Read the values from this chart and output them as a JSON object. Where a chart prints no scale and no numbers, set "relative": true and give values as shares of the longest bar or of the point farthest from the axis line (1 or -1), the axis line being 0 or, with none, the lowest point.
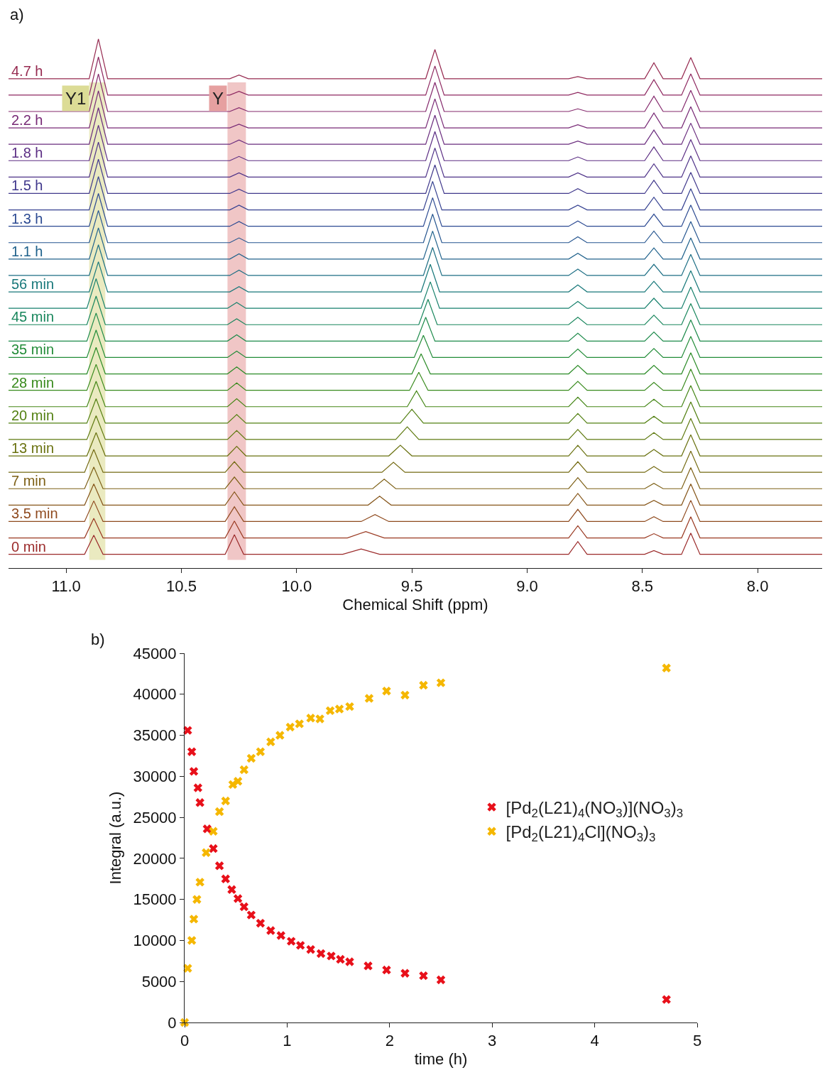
{
  "chart_data": [
    {
      "type": "line",
      "relative": true,
      "xlabel": "Chemical Shift (ppm)",
      "annotations": [
        "a)"
      ],
      "xlim": [
        11.25,
        7.72
      ],
      "xticks": [
        {
          "value": 11,
          "label": "11.0"
        },
        {
          "value": 10.5,
          "label": "10.5"
        },
        {
          "value": 10,
          "label": "10.0"
        },
        {
          "value": 9.5,
          "label": "9.5"
        },
        {
          "value": 9,
          "label": "9.0"
        },
        {
          "value": 8.5,
          "label": "8.5"
        },
        {
          "value": 8,
          "label": "8.0"
        }
      ],
      "tick_labels": "x",
      "grid": false,
      "legend": false,
      "marker": "none",
      "line_style": "solid",
      "bands": [
        {
          "axis": "x",
          "from": 10.9,
          "to": 10.83,
          "label": "Y1",
          "color": "#dcdc96"
        },
        {
          "axis": "x",
          "from": 10.3,
          "to": 10.22,
          "label": "Y",
          "color": "#e6a0a0"
        }
      ],
      "series": [
        {
          "name": "0 min",
          "color": "#9b2a2a",
          "x": [
            11.25,
            10.92,
            10.88,
            10.84,
            10.31,
            10.27,
            10.23,
            9.8,
            9.72,
            9.64,
            8.82,
            8.78,
            8.74,
            8.49,
            8.45,
            8.41,
            8.33,
            8.29,
            8.25,
            7.72
          ],
          "values": [
            0.026,
            0.026,
            0.062,
            0.026,
            0.026,
            0.063,
            0.026,
            0.026,
            0.036,
            0.026,
            0.026,
            0.05,
            0.026,
            0.026,
            0.033,
            0.026,
            0.026,
            0.066,
            0.026,
            0.026
          ]
        },
        {
          "color": "#9a3a22",
          "x": [
            11.25,
            10.92,
            10.88,
            10.84,
            10.31,
            10.27,
            10.23,
            9.78,
            9.7,
            9.62,
            8.82,
            8.78,
            8.74,
            8.49,
            8.45,
            8.41,
            8.33,
            8.29,
            8.25,
            7.72
          ],
          "values": [
            0.057,
            0.057,
            0.094,
            0.057,
            0.057,
            0.089,
            0.057,
            0.057,
            0.069,
            0.057,
            0.057,
            0.08,
            0.057,
            0.057,
            0.065,
            0.057,
            0.057,
            0.097,
            0.057,
            0.057
          ]
        },
        {
          "name": "3.5 min",
          "color": "#8f4a1e",
          "x": [
            11.25,
            10.92,
            10.88,
            10.84,
            10.31,
            10.27,
            10.23,
            9.72,
            9.66,
            9.6,
            8.82,
            8.78,
            8.74,
            8.49,
            8.45,
            8.41,
            8.33,
            8.29,
            8.25,
            7.72
          ],
          "values": [
            0.088,
            0.088,
            0.127,
            0.088,
            0.088,
            0.116,
            0.088,
            0.088,
            0.101,
            0.088,
            0.088,
            0.111,
            0.088,
            0.088,
            0.097,
            0.088,
            0.088,
            0.128,
            0.088,
            0.088
          ]
        },
        {
          "color": "#86561a",
          "x": [
            11.25,
            10.92,
            10.88,
            10.84,
            10.31,
            10.27,
            10.23,
            9.69,
            9.64,
            9.59,
            8.82,
            8.78,
            8.74,
            8.49,
            8.45,
            8.41,
            8.33,
            8.29,
            8.25,
            7.72
          ],
          "values": [
            0.119,
            0.119,
            0.159,
            0.119,
            0.119,
            0.144,
            0.119,
            0.119,
            0.136,
            0.119,
            0.119,
            0.141,
            0.119,
            0.119,
            0.128,
            0.119,
            0.119,
            0.159,
            0.119,
            0.119
          ]
        },
        {
          "name": "7 min",
          "color": "#7d6016",
          "x": [
            11.25,
            10.92,
            10.88,
            10.84,
            10.31,
            10.27,
            10.23,
            9.67,
            9.62,
            9.57,
            8.82,
            8.78,
            8.74,
            8.49,
            8.45,
            8.41,
            8.33,
            8.29,
            8.25,
            7.72
          ],
          "values": [
            0.15,
            0.15,
            0.191,
            0.15,
            0.15,
            0.172,
            0.15,
            0.15,
            0.168,
            0.15,
            0.15,
            0.171,
            0.15,
            0.15,
            0.16,
            0.15,
            0.15,
            0.19,
            0.15,
            0.15
          ]
        },
        {
          "color": "#746a12",
          "x": [
            11.25,
            10.92,
            10.88,
            10.84,
            10.31,
            10.27,
            10.23,
            9.63,
            9.58,
            9.53,
            8.82,
            8.78,
            8.74,
            8.49,
            8.45,
            8.41,
            8.33,
            8.29,
            8.25,
            7.72
          ],
          "values": [
            0.181,
            0.181,
            0.224,
            0.181,
            0.181,
            0.201,
            0.181,
            0.181,
            0.2,
            0.181,
            0.181,
            0.201,
            0.181,
            0.181,
            0.192,
            0.181,
            0.181,
            0.221,
            0.181,
            0.181
          ]
        },
        {
          "name": "13 min",
          "color": "#6a7210",
          "x": [
            11.25,
            10.91,
            10.87,
            10.83,
            10.3,
            10.26,
            10.22,
            9.6,
            9.55,
            9.5,
            8.82,
            8.78,
            8.74,
            8.49,
            8.45,
            8.41,
            8.33,
            8.29,
            8.25,
            7.72
          ],
          "values": [
            0.212,
            0.212,
            0.256,
            0.212,
            0.212,
            0.23,
            0.212,
            0.212,
            0.232,
            0.212,
            0.212,
            0.232,
            0.212,
            0.212,
            0.224,
            0.212,
            0.212,
            0.252,
            0.212,
            0.212
          ]
        },
        {
          "color": "#5f7a10",
          "x": [
            11.25,
            10.91,
            10.87,
            10.83,
            10.3,
            10.26,
            10.22,
            9.57,
            9.52,
            9.47,
            8.82,
            8.78,
            8.74,
            8.49,
            8.45,
            8.41,
            8.33,
            8.29,
            8.25,
            7.72
          ],
          "values": [
            0.243,
            0.243,
            0.288,
            0.243,
            0.243,
            0.26,
            0.243,
            0.243,
            0.267,
            0.243,
            0.243,
            0.262,
            0.243,
            0.243,
            0.256,
            0.243,
            0.243,
            0.283,
            0.243,
            0.243
          ]
        },
        {
          "name": "20 min",
          "color": "#538012",
          "x": [
            11.25,
            10.91,
            10.87,
            10.83,
            10.3,
            10.26,
            10.22,
            9.55,
            9.5,
            9.45,
            8.82,
            8.78,
            8.74,
            8.49,
            8.45,
            8.41,
            8.33,
            8.29,
            8.25,
            7.72
          ],
          "values": [
            0.274,
            0.274,
            0.32,
            0.274,
            0.274,
            0.29,
            0.274,
            0.274,
            0.3,
            0.274,
            0.274,
            0.292,
            0.274,
            0.274,
            0.287,
            0.274,
            0.274,
            0.314,
            0.274,
            0.274
          ]
        },
        {
          "color": "#458616",
          "x": [
            11.25,
            10.91,
            10.87,
            10.83,
            10.3,
            10.26,
            10.22,
            9.52,
            9.48,
            9.44,
            8.82,
            8.78,
            8.74,
            8.49,
            8.45,
            8.41,
            8.33,
            8.29,
            8.25,
            7.72
          ],
          "values": [
            0.305,
            0.305,
            0.353,
            0.305,
            0.305,
            0.32,
            0.305,
            0.305,
            0.335,
            0.305,
            0.305,
            0.323,
            0.305,
            0.305,
            0.319,
            0.305,
            0.305,
            0.345,
            0.305,
            0.305
          ]
        },
        {
          "name": "28 min",
          "color": "#388a1c",
          "x": [
            11.25,
            10.91,
            10.87,
            10.83,
            10.3,
            10.26,
            10.22,
            9.51,
            9.47,
            9.43,
            8.82,
            8.78,
            8.74,
            8.49,
            8.45,
            8.41,
            8.33,
            8.29,
            8.25,
            7.72
          ],
          "values": [
            0.336,
            0.336,
            0.385,
            0.336,
            0.336,
            0.35,
            0.336,
            0.336,
            0.37,
            0.336,
            0.336,
            0.353,
            0.336,
            0.336,
            0.351,
            0.336,
            0.336,
            0.376,
            0.336,
            0.336
          ]
        },
        {
          "color": "#2c8c28",
          "x": [
            11.25,
            10.91,
            10.87,
            10.83,
            10.3,
            10.26,
            10.22,
            9.5,
            9.46,
            9.42,
            8.82,
            8.78,
            8.74,
            8.49,
            8.45,
            8.41,
            8.33,
            8.29,
            8.25,
            7.72
          ],
          "values": [
            0.367,
            0.367,
            0.417,
            0.367,
            0.367,
            0.38,
            0.367,
            0.367,
            0.405,
            0.367,
            0.367,
            0.383,
            0.367,
            0.367,
            0.383,
            0.367,
            0.367,
            0.407,
            0.367,
            0.367
          ]
        },
        {
          "name": "35 min",
          "color": "#228c38",
          "x": [
            11.25,
            10.91,
            10.87,
            10.83,
            10.3,
            10.26,
            10.22,
            9.49,
            9.45,
            9.41,
            8.82,
            8.78,
            8.74,
            8.49,
            8.45,
            8.41,
            8.33,
            8.29,
            8.25,
            7.72
          ],
          "values": [
            0.398,
            0.398,
            0.45,
            0.398,
            0.398,
            0.41,
            0.398,
            0.398,
            0.44,
            0.398,
            0.398,
            0.414,
            0.398,
            0.398,
            0.415,
            0.398,
            0.398,
            0.438,
            0.398,
            0.398
          ]
        },
        {
          "color": "#1c8a4a",
          "x": [
            11.25,
            10.91,
            10.87,
            10.83,
            10.3,
            10.26,
            10.22,
            9.48,
            9.44,
            9.4,
            8.82,
            8.78,
            8.74,
            8.49,
            8.45,
            8.41,
            8.33,
            8.29,
            8.25,
            7.72
          ],
          "values": [
            0.429,
            0.429,
            0.482,
            0.429,
            0.429,
            0.441,
            0.429,
            0.429,
            0.474,
            0.429,
            0.429,
            0.444,
            0.429,
            0.429,
            0.446,
            0.429,
            0.429,
            0.469,
            0.429,
            0.429
          ]
        },
        {
          "name": "45 min",
          "color": "#18865c",
          "x": [
            11.25,
            10.91,
            10.87,
            10.83,
            10.3,
            10.26,
            10.22,
            9.47,
            9.43,
            9.39,
            8.82,
            8.78,
            8.74,
            8.49,
            8.45,
            8.41,
            8.33,
            8.29,
            8.25,
            7.72
          ],
          "values": [
            0.46,
            0.46,
            0.514,
            0.46,
            0.46,
            0.471,
            0.46,
            0.46,
            0.508,
            0.46,
            0.46,
            0.474,
            0.46,
            0.46,
            0.478,
            0.46,
            0.46,
            0.5,
            0.46,
            0.46
          ]
        },
        {
          "color": "#16806c",
          "x": [
            11.25,
            10.91,
            10.87,
            10.83,
            10.3,
            10.26,
            10.22,
            9.46,
            9.42,
            9.38,
            8.82,
            8.78,
            8.74,
            8.49,
            8.45,
            8.41,
            8.33,
            8.29,
            8.25,
            7.72
          ],
          "values": [
            0.491,
            0.491,
            0.547,
            0.491,
            0.491,
            0.502,
            0.491,
            0.491,
            0.541,
            0.491,
            0.491,
            0.504,
            0.491,
            0.491,
            0.51,
            0.491,
            0.491,
            0.531,
            0.491,
            0.491
          ]
        },
        {
          "name": "56 min",
          "color": "#18787a",
          "x": [
            11.25,
            10.9,
            10.86,
            10.82,
            10.29,
            10.25,
            10.21,
            9.46,
            9.42,
            9.38,
            8.82,
            8.78,
            8.74,
            8.49,
            8.45,
            8.41,
            8.33,
            8.29,
            8.25,
            7.72
          ],
          "values": [
            0.522,
            0.522,
            0.579,
            0.522,
            0.522,
            0.532,
            0.522,
            0.522,
            0.574,
            0.522,
            0.522,
            0.535,
            0.522,
            0.522,
            0.542,
            0.522,
            0.522,
            0.562,
            0.522,
            0.522
          ]
        },
        {
          "color": "#1c6e84",
          "x": [
            11.25,
            10.9,
            10.86,
            10.82,
            10.29,
            10.25,
            10.21,
            9.45,
            9.41,
            9.37,
            8.82,
            8.78,
            8.74,
            8.49,
            8.45,
            8.41,
            8.33,
            8.29,
            8.25,
            7.72
          ],
          "values": [
            0.553,
            0.553,
            0.611,
            0.553,
            0.553,
            0.563,
            0.553,
            0.553,
            0.606,
            0.553,
            0.553,
            0.565,
            0.553,
            0.553,
            0.574,
            0.553,
            0.553,
            0.593,
            0.553,
            0.553
          ]
        },
        {
          "name": "1.1 h",
          "color": "#20628c",
          "x": [
            11.25,
            10.9,
            10.86,
            10.82,
            10.29,
            10.25,
            10.21,
            9.45,
            9.41,
            9.37,
            8.82,
            8.78,
            8.74,
            8.49,
            8.45,
            8.41,
            8.33,
            8.29,
            8.25,
            7.72
          ],
          "values": [
            0.584,
            0.584,
            0.643,
            0.584,
            0.584,
            0.594,
            0.584,
            0.584,
            0.637,
            0.584,
            0.584,
            0.595,
            0.584,
            0.584,
            0.605,
            0.584,
            0.584,
            0.624,
            0.584,
            0.584
          ]
        },
        {
          "color": "#265690",
          "x": [
            11.25,
            10.9,
            10.86,
            10.82,
            10.29,
            10.25,
            10.21,
            9.45,
            9.41,
            9.37,
            8.82,
            8.78,
            8.74,
            8.49,
            8.45,
            8.41,
            8.33,
            8.29,
            8.25,
            7.72
          ],
          "values": [
            0.615,
            0.615,
            0.676,
            0.615,
            0.615,
            0.624,
            0.615,
            0.615,
            0.669,
            0.615,
            0.615,
            0.626,
            0.615,
            0.615,
            0.637,
            0.615,
            0.615,
            0.655,
            0.615,
            0.615
          ]
        },
        {
          "name": "1.3 h",
          "color": "#2c4a92",
          "x": [
            11.25,
            10.9,
            10.86,
            10.82,
            10.29,
            10.25,
            10.21,
            9.45,
            9.41,
            9.37,
            8.82,
            8.78,
            8.74,
            8.49,
            8.45,
            8.41,
            8.33,
            8.29,
            8.25,
            7.72
          ],
          "values": [
            0.646,
            0.646,
            0.708,
            0.646,
            0.646,
            0.655,
            0.646,
            0.646,
            0.7,
            0.646,
            0.646,
            0.656,
            0.646,
            0.646,
            0.669,
            0.646,
            0.646,
            0.686,
            0.646,
            0.646
          ]
        },
        {
          "color": "#344090",
          "x": [
            11.25,
            10.9,
            10.86,
            10.82,
            10.29,
            10.25,
            10.21,
            9.45,
            9.41,
            9.37,
            8.82,
            8.78,
            8.74,
            8.49,
            8.45,
            8.41,
            8.33,
            8.29,
            8.25,
            7.72
          ],
          "values": [
            0.677,
            0.677,
            0.74,
            0.677,
            0.677,
            0.686,
            0.677,
            0.677,
            0.731,
            0.677,
            0.677,
            0.686,
            0.677,
            0.677,
            0.701,
            0.677,
            0.677,
            0.717,
            0.677,
            0.677
          ]
        },
        {
          "name": "1.5 h",
          "color": "#40388c",
          "x": [
            11.25,
            10.9,
            10.86,
            10.82,
            10.29,
            10.25,
            10.21,
            9.44,
            9.4,
            9.36,
            8.82,
            8.78,
            8.74,
            8.49,
            8.45,
            8.41,
            8.33,
            8.29,
            8.25,
            7.72
          ],
          "values": [
            0.708,
            0.708,
            0.773,
            0.708,
            0.708,
            0.716,
            0.708,
            0.708,
            0.762,
            0.708,
            0.708,
            0.717,
            0.708,
            0.708,
            0.733,
            0.708,
            0.708,
            0.748,
            0.708,
            0.708
          ]
        },
        {
          "color": "#4e3288",
          "x": [
            11.25,
            10.9,
            10.86,
            10.82,
            10.29,
            10.25,
            10.21,
            9.44,
            9.4,
            9.36,
            8.82,
            8.78,
            8.74,
            8.49,
            8.45,
            8.41,
            8.33,
            8.29,
            8.25,
            7.72
          ],
          "values": [
            0.739,
            0.739,
            0.805,
            0.739,
            0.739,
            0.747,
            0.739,
            0.739,
            0.794,
            0.739,
            0.739,
            0.747,
            0.739,
            0.739,
            0.764,
            0.739,
            0.739,
            0.779,
            0.739,
            0.739
          ]
        },
        {
          "name": "1.8 h",
          "color": "#5c2e84",
          "x": [
            11.25,
            10.9,
            10.86,
            10.82,
            10.29,
            10.25,
            10.21,
            9.44,
            9.4,
            9.36,
            8.82,
            8.78,
            8.74,
            8.49,
            8.45,
            8.41,
            8.33,
            8.29,
            8.25,
            7.72
          ],
          "values": [
            0.77,
            0.77,
            0.837,
            0.77,
            0.77,
            0.778,
            0.77,
            0.77,
            0.825,
            0.77,
            0.77,
            0.777,
            0.77,
            0.77,
            0.796,
            0.77,
            0.77,
            0.81,
            0.77,
            0.77
          ]
        },
        {
          "color": "#6a2c7e",
          "x": [
            11.25,
            10.9,
            10.86,
            10.82,
            10.29,
            10.25,
            10.21,
            9.44,
            9.4,
            9.36,
            8.82,
            8.78,
            8.74,
            8.49,
            8.45,
            8.41,
            8.33,
            8.29,
            8.25,
            7.72
          ],
          "values": [
            0.801,
            0.801,
            0.87,
            0.801,
            0.801,
            0.809,
            0.801,
            0.801,
            0.856,
            0.801,
            0.801,
            0.807,
            0.801,
            0.801,
            0.828,
            0.801,
            0.801,
            0.841,
            0.801,
            0.801
          ]
        },
        {
          "name": "2.2 h",
          "color": "#782a76",
          "x": [
            11.25,
            10.9,
            10.86,
            10.82,
            10.29,
            10.25,
            10.21,
            9.44,
            9.4,
            9.36,
            8.82,
            8.78,
            8.74,
            8.49,
            8.45,
            8.41,
            8.33,
            8.29,
            8.25,
            7.72
          ],
          "values": [
            0.832,
            0.832,
            0.902,
            0.832,
            0.832,
            0.839,
            0.832,
            0.832,
            0.887,
            0.832,
            0.832,
            0.838,
            0.832,
            0.832,
            0.86,
            0.832,
            0.832,
            0.872,
            0.832,
            0.832
          ]
        },
        {
          "color": "#84286c",
          "x": [
            11.25,
            10.9,
            10.86,
            10.82,
            10.29,
            10.25,
            10.21,
            9.44,
            9.4,
            9.36,
            8.82,
            8.78,
            8.74,
            8.49,
            8.45,
            8.41,
            8.33,
            8.29,
            8.25,
            7.72
          ],
          "values": [
            0.863,
            0.863,
            0.934,
            0.863,
            0.863,
            0.87,
            0.863,
            0.863,
            0.918,
            0.863,
            0.863,
            0.868,
            0.863,
            0.863,
            0.892,
            0.863,
            0.863,
            0.903,
            0.863,
            0.863
          ]
        },
        {
          "color": "#8e2860",
          "x": [
            11.25,
            10.9,
            10.86,
            10.82,
            10.29,
            10.25,
            10.21,
            9.44,
            9.4,
            9.36,
            8.82,
            8.78,
            8.74,
            8.49,
            8.45,
            8.41,
            8.33,
            8.29,
            8.25,
            7.72
          ],
          "values": [
            0.894,
            0.894,
            0.966,
            0.894,
            0.894,
            0.901,
            0.894,
            0.894,
            0.949,
            0.894,
            0.894,
            0.899,
            0.894,
            0.894,
            0.923,
            0.894,
            0.894,
            0.934,
            0.894,
            0.894
          ]
        },
        {
          "name": "4.7 h",
          "color": "#962a50",
          "x": [
            11.25,
            10.9,
            10.86,
            10.82,
            10.29,
            10.25,
            10.21,
            9.44,
            9.4,
            9.36,
            8.82,
            8.78,
            8.74,
            8.49,
            8.45,
            8.41,
            8.33,
            8.29,
            8.25,
            7.72
          ],
          "values": [
            0.925,
            0.925,
            1,
            0.925,
            0.925,
            0.932,
            0.925,
            0.925,
            0.98,
            0.925,
            0.925,
            0.929,
            0.925,
            0.925,
            0.955,
            0.925,
            0.925,
            0.965,
            0.925,
            0.925
          ]
        }
      ]
    },
    {
      "type": "scatter",
      "xlabel": "time (h)",
      "ylabel": "Integral (a.u.)",
      "annotations": [
        "b)"
      ],
      "xlim": [
        0,
        5
      ],
      "xticks": [
        0,
        1,
        2,
        3,
        4,
        5
      ],
      "ylim": [
        0,
        45000
      ],
      "yticks": [
        0,
        5000,
        10000,
        15000,
        20000,
        25000,
        30000,
        35000,
        40000,
        45000
      ],
      "grid": false,
      "legend": "right",
      "marker": "cross",
      "series": [
        {
          "name": "[Pd$_{2}$(L21)$_{4}$(NO$_{3}$)](NO$_{3}$)$_{3}$",
          "color": "#e8101a",
          "x": [
            0.03,
            0.07,
            0.09,
            0.13,
            0.15,
            0.22,
            0.28,
            0.34,
            0.4,
            0.46,
            0.52,
            0.58,
            0.65,
            0.74,
            0.84,
            0.94,
            1.04,
            1.13,
            1.23,
            1.33,
            1.43,
            1.52,
            1.61,
            1.79,
            1.97,
            2.15,
            2.33,
            2.5,
            4.7
          ],
          "values": [
            35600,
            33000,
            30600,
            28600,
            26800,
            23600,
            21200,
            19100,
            17500,
            16200,
            15100,
            14100,
            13100,
            12100,
            11200,
            10600,
            9900,
            9400,
            8900,
            8400,
            8100,
            7700,
            7400,
            6900,
            6400,
            6000,
            5700,
            5200,
            2800
          ]
        },
        {
          "name": "[Pd$_{2}$(L21)$_{4}$Cl](NO$_{3}$)$_{3}$",
          "color": "#f5b700",
          "x": [
            0,
            0.03,
            0.07,
            0.09,
            0.12,
            0.15,
            0.21,
            0.28,
            0.34,
            0.4,
            0.47,
            0.52,
            0.58,
            0.65,
            0.74,
            0.84,
            0.93,
            1.03,
            1.12,
            1.23,
            1.32,
            1.42,
            1.51,
            1.61,
            1.8,
            1.97,
            2.15,
            2.33,
            2.5,
            4.7
          ],
          "values": [
            0,
            6600,
            10000,
            12600,
            15000,
            17100,
            20700,
            23300,
            25700,
            27000,
            29000,
            29400,
            30800,
            32200,
            33000,
            34200,
            35000,
            36000,
            36400,
            37100,
            37000,
            38000,
            38200,
            38500,
            39500,
            40400,
            39900,
            41100,
            41400,
            43200
          ]
        }
      ]
    }
  ]
}
